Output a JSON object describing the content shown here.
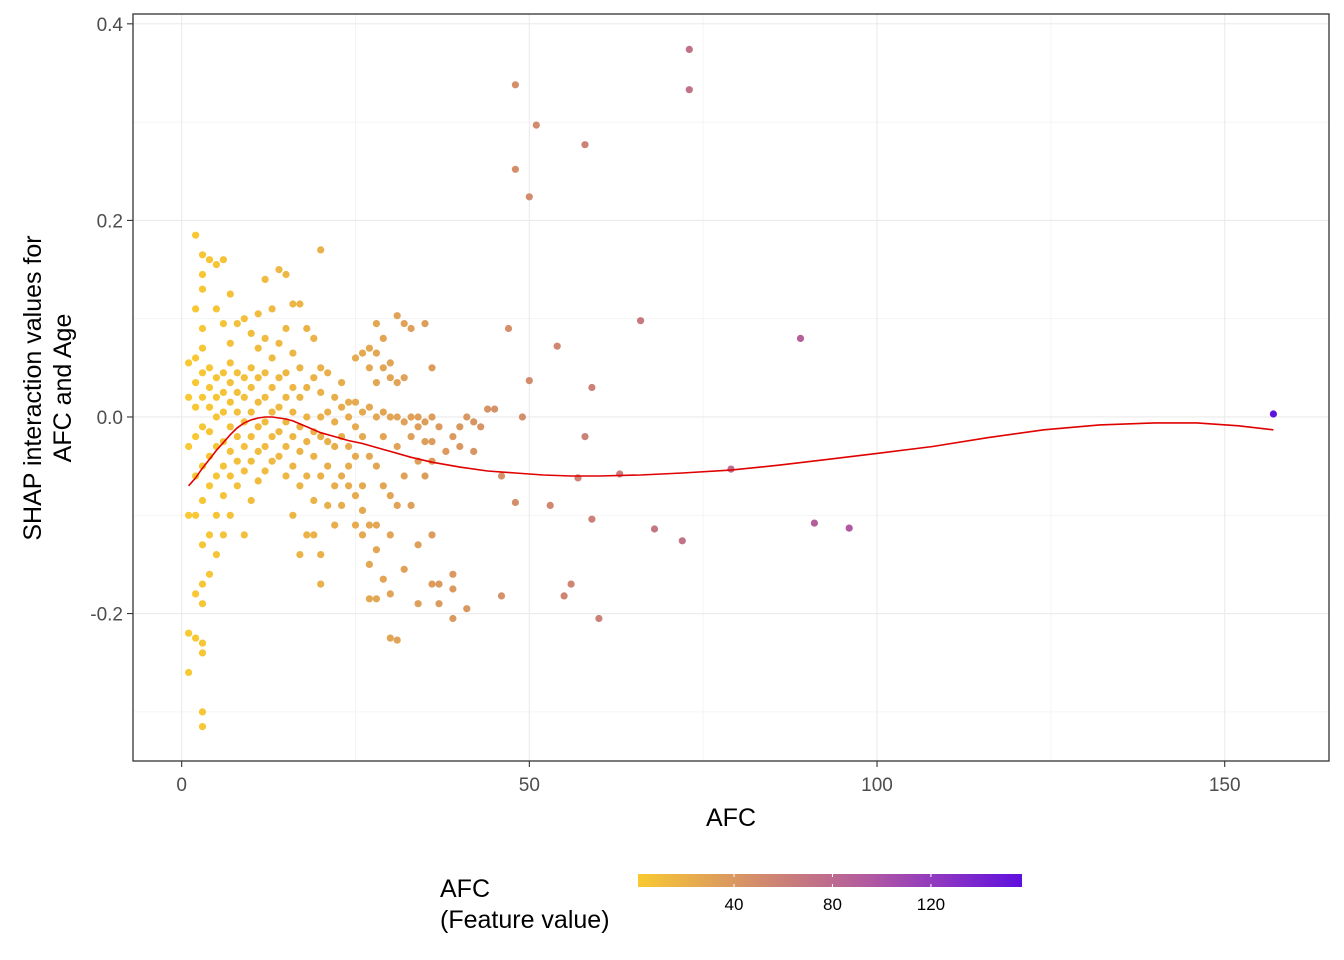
{
  "chart_data": {
    "type": "scatter",
    "xlabel": "AFC",
    "ylabel_lines": [
      "SHAP interaction values for",
      "AFC and Age"
    ],
    "xlim": [
      -7,
      165
    ],
    "ylim": [
      -0.35,
      0.41
    ],
    "x_ticks": [
      0,
      50,
      100,
      150
    ],
    "y_ticks": [
      0.4,
      0.2,
      0.0,
      -0.2
    ],
    "y_tick_labels": [
      "0.4",
      "0.2",
      "0.0",
      "-0.2"
    ],
    "grid": true,
    "legend": {
      "title_lines": [
        "AFC",
        "(Feature value)"
      ],
      "position": "bottom",
      "range": [
        1,
        157
      ],
      "ticks": [
        40,
        80,
        120
      ],
      "colors": [
        "#f9c932",
        "#e0a158",
        "#c87c7c",
        "#b25aa0",
        "#8b34c4",
        "#5f10dd"
      ]
    },
    "points": [
      [
        1,
        -0.26
      ],
      [
        1,
        -0.22
      ],
      [
        1,
        -0.1
      ],
      [
        1,
        -0.03
      ],
      [
        1,
        0.02
      ],
      [
        1,
        0.055
      ],
      [
        2,
        -0.225
      ],
      [
        2,
        -0.18
      ],
      [
        2,
        -0.1
      ],
      [
        2,
        -0.06
      ],
      [
        2,
        -0.02
      ],
      [
        2,
        0.01
      ],
      [
        2,
        0.035
      ],
      [
        2,
        0.06
      ],
      [
        2,
        0.11
      ],
      [
        2,
        0.185
      ],
      [
        3,
        -0.315
      ],
      [
        3,
        -0.3
      ],
      [
        3,
        -0.24
      ],
      [
        3,
        -0.23
      ],
      [
        3,
        -0.19
      ],
      [
        3,
        -0.17
      ],
      [
        3,
        -0.13
      ],
      [
        3,
        -0.085
      ],
      [
        3,
        -0.05
      ],
      [
        3,
        -0.01
      ],
      [
        3,
        0.02
      ],
      [
        3,
        0.045
      ],
      [
        3,
        0.07
      ],
      [
        3,
        0.09
      ],
      [
        3,
        0.13
      ],
      [
        3,
        0.145
      ],
      [
        3,
        0.165
      ],
      [
        4,
        -0.16
      ],
      [
        4,
        -0.12
      ],
      [
        4,
        -0.07
      ],
      [
        4,
        -0.04
      ],
      [
        4,
        -0.015
      ],
      [
        4,
        0.01
      ],
      [
        4,
        0.03
      ],
      [
        4,
        0.05
      ],
      [
        4,
        0.16
      ],
      [
        5,
        -0.14
      ],
      [
        5,
        -0.1
      ],
      [
        5,
        -0.06
      ],
      [
        5,
        -0.03
      ],
      [
        5,
        0.0
      ],
      [
        5,
        0.02
      ],
      [
        5,
        0.04
      ],
      [
        5,
        0.11
      ],
      [
        5,
        0.155
      ],
      [
        6,
        -0.12
      ],
      [
        6,
        -0.08
      ],
      [
        6,
        -0.05
      ],
      [
        6,
        -0.025
      ],
      [
        6,
        0.005
      ],
      [
        6,
        0.025
      ],
      [
        6,
        0.045
      ],
      [
        6,
        0.095
      ],
      [
        6,
        0.16
      ],
      [
        7,
        -0.1
      ],
      [
        7,
        -0.06
      ],
      [
        7,
        -0.035
      ],
      [
        7,
        -0.01
      ],
      [
        7,
        0.015
      ],
      [
        7,
        0.035
      ],
      [
        7,
        0.055
      ],
      [
        7,
        0.075
      ],
      [
        7,
        0.125
      ],
      [
        8,
        -0.07
      ],
      [
        8,
        -0.045
      ],
      [
        8,
        -0.02
      ],
      [
        8,
        0.005
      ],
      [
        8,
        0.025
      ],
      [
        8,
        0.045
      ],
      [
        8,
        0.095
      ],
      [
        9,
        -0.12
      ],
      [
        9,
        -0.055
      ],
      [
        9,
        -0.03
      ],
      [
        9,
        -0.005
      ],
      [
        9,
        0.02
      ],
      [
        9,
        0.04
      ],
      [
        9,
        0.1
      ],
      [
        10,
        -0.085
      ],
      [
        10,
        -0.045
      ],
      [
        10,
        -0.02
      ],
      [
        10,
        0.005
      ],
      [
        10,
        0.03
      ],
      [
        10,
        0.05
      ],
      [
        10,
        0.085
      ],
      [
        11,
        -0.065
      ],
      [
        11,
        -0.035
      ],
      [
        11,
        -0.01
      ],
      [
        11,
        0.015
      ],
      [
        11,
        0.04
      ],
      [
        11,
        0.07
      ],
      [
        11,
        0.105
      ],
      [
        12,
        -0.055
      ],
      [
        12,
        -0.03
      ],
      [
        12,
        -0.005
      ],
      [
        12,
        0.02
      ],
      [
        12,
        0.045
      ],
      [
        12,
        0.08
      ],
      [
        12,
        0.14
      ],
      [
        13,
        -0.045
      ],
      [
        13,
        -0.02
      ],
      [
        13,
        0.005
      ],
      [
        13,
        0.03
      ],
      [
        13,
        0.06
      ],
      [
        13,
        0.11
      ],
      [
        14,
        -0.04
      ],
      [
        14,
        -0.015
      ],
      [
        14,
        0.01
      ],
      [
        14,
        0.04
      ],
      [
        14,
        0.075
      ],
      [
        14,
        0.15
      ],
      [
        15,
        -0.06
      ],
      [
        15,
        -0.03
      ],
      [
        15,
        -0.005
      ],
      [
        15,
        0.02
      ],
      [
        15,
        0.045
      ],
      [
        15,
        0.09
      ],
      [
        15,
        0.145
      ],
      [
        16,
        -0.1
      ],
      [
        16,
        -0.05
      ],
      [
        16,
        -0.02
      ],
      [
        16,
        0.005
      ],
      [
        16,
        0.03
      ],
      [
        16,
        0.065
      ],
      [
        16,
        0.115
      ],
      [
        17,
        -0.14
      ],
      [
        17,
        -0.07
      ],
      [
        17,
        -0.035
      ],
      [
        17,
        -0.01
      ],
      [
        17,
        0.02
      ],
      [
        17,
        0.05
      ],
      [
        17,
        0.115
      ],
      [
        18,
        -0.12
      ],
      [
        18,
        -0.06
      ],
      [
        18,
        -0.025
      ],
      [
        18,
        0.0
      ],
      [
        18,
        0.03
      ],
      [
        18,
        0.09
      ],
      [
        19,
        -0.12
      ],
      [
        19,
        -0.085
      ],
      [
        19,
        -0.04
      ],
      [
        19,
        -0.015
      ],
      [
        19,
        0.04
      ],
      [
        19,
        0.08
      ],
      [
        20,
        -0.17
      ],
      [
        20,
        -0.14
      ],
      [
        20,
        -0.06
      ],
      [
        20,
        -0.02
      ],
      [
        20,
        0.0
      ],
      [
        20,
        0.025
      ],
      [
        20,
        0.05
      ],
      [
        20,
        0.17
      ],
      [
        21,
        -0.09
      ],
      [
        21,
        -0.05
      ],
      [
        21,
        -0.025
      ],
      [
        21,
        0.005
      ],
      [
        21,
        0.045
      ],
      [
        22,
        -0.11
      ],
      [
        22,
        -0.07
      ],
      [
        22,
        -0.03
      ],
      [
        22,
        -0.005
      ],
      [
        22,
        0.02
      ],
      [
        23,
        -0.09
      ],
      [
        23,
        -0.06
      ],
      [
        23,
        -0.02
      ],
      [
        23,
        0.01
      ],
      [
        23,
        0.035
      ],
      [
        24,
        -0.07
      ],
      [
        24,
        -0.05
      ],
      [
        24,
        -0.03
      ],
      [
        24,
        0.0
      ],
      [
        24,
        0.015
      ],
      [
        25,
        -0.11
      ],
      [
        25,
        -0.08
      ],
      [
        25,
        -0.04
      ],
      [
        25,
        -0.01
      ],
      [
        25,
        0.015
      ],
      [
        25,
        0.06
      ],
      [
        26,
        -0.12
      ],
      [
        26,
        -0.095
      ],
      [
        26,
        -0.07
      ],
      [
        26,
        -0.02
      ],
      [
        26,
        0.005
      ],
      [
        26,
        0.065
      ],
      [
        27,
        -0.185
      ],
      [
        27,
        -0.15
      ],
      [
        27,
        -0.11
      ],
      [
        27,
        -0.04
      ],
      [
        27,
        0.01
      ],
      [
        27,
        0.05
      ],
      [
        27,
        0.07
      ],
      [
        28,
        -0.185
      ],
      [
        28,
        -0.135
      ],
      [
        28,
        -0.11
      ],
      [
        28,
        -0.05
      ],
      [
        28,
        0.0
      ],
      [
        28,
        0.035
      ],
      [
        28,
        0.065
      ],
      [
        28,
        0.095
      ],
      [
        29,
        -0.165
      ],
      [
        29,
        -0.07
      ],
      [
        29,
        -0.02
      ],
      [
        29,
        0.005
      ],
      [
        29,
        0.05
      ],
      [
        29,
        0.08
      ],
      [
        30,
        -0.225
      ],
      [
        30,
        -0.18
      ],
      [
        30,
        -0.12
      ],
      [
        30,
        -0.08
      ],
      [
        30,
        0.0
      ],
      [
        30,
        0.04
      ],
      [
        30,
        0.055
      ],
      [
        31,
        -0.227
      ],
      [
        31,
        -0.09
      ],
      [
        31,
        -0.03
      ],
      [
        31,
        0.0
      ],
      [
        31,
        0.035
      ],
      [
        31,
        0.103
      ],
      [
        32,
        -0.155
      ],
      [
        32,
        -0.06
      ],
      [
        32,
        -0.005
      ],
      [
        32,
        0.04
      ],
      [
        32,
        0.095
      ],
      [
        33,
        -0.09
      ],
      [
        33,
        -0.02
      ],
      [
        33,
        0.0
      ],
      [
        33,
        0.09
      ],
      [
        34,
        -0.19
      ],
      [
        34,
        -0.13
      ],
      [
        34,
        -0.045
      ],
      [
        34,
        -0.01
      ],
      [
        34,
        0.0
      ],
      [
        35,
        -0.06
      ],
      [
        35,
        -0.025
      ],
      [
        35,
        -0.005
      ],
      [
        35,
        0.095
      ],
      [
        36,
        -0.17
      ],
      [
        36,
        -0.12
      ],
      [
        36,
        -0.045
      ],
      [
        36,
        -0.025
      ],
      [
        36,
        0.0
      ],
      [
        36,
        0.05
      ],
      [
        37,
        -0.19
      ],
      [
        37,
        -0.17
      ],
      [
        37,
        -0.01
      ],
      [
        38,
        -0.035
      ],
      [
        39,
        -0.205
      ],
      [
        39,
        -0.175
      ],
      [
        39,
        -0.16
      ],
      [
        39,
        -0.02
      ],
      [
        40,
        -0.03
      ],
      [
        40,
        -0.01
      ],
      [
        41,
        -0.195
      ],
      [
        41,
        0.0
      ],
      [
        42,
        -0.035
      ],
      [
        42,
        -0.005
      ],
      [
        43,
        -0.01
      ],
      [
        44,
        0.008
      ],
      [
        45,
        0.008
      ],
      [
        46,
        -0.182
      ],
      [
        46,
        -0.06
      ],
      [
        47,
        0.09
      ],
      [
        48,
        0.338
      ],
      [
        48,
        0.252
      ],
      [
        48,
        -0.087
      ],
      [
        49,
        0.0
      ],
      [
        50,
        0.224
      ],
      [
        50,
        0.037
      ],
      [
        51,
        0.297
      ],
      [
        53,
        -0.09
      ],
      [
        54,
        0.072
      ],
      [
        55,
        -0.182
      ],
      [
        56,
        -0.17
      ],
      [
        57,
        -0.062
      ],
      [
        58,
        0.277
      ],
      [
        58,
        -0.02
      ],
      [
        59,
        0.03
      ],
      [
        59,
        -0.104
      ],
      [
        60,
        -0.205
      ],
      [
        63,
        -0.058
      ],
      [
        66,
        0.098
      ],
      [
        68,
        -0.114
      ],
      [
        72,
        -0.126
      ],
      [
        73,
        0.374
      ],
      [
        73,
        0.333
      ],
      [
        79,
        -0.053
      ],
      [
        89,
        0.08
      ],
      [
        91,
        -0.108
      ],
      [
        96,
        -0.113
      ],
      [
        157,
        0.003
      ]
    ],
    "smooth_line": {
      "color": "#e00000",
      "x": [
        1,
        2,
        3,
        4,
        5,
        6,
        7,
        8,
        9,
        10,
        11,
        12,
        13,
        14,
        15,
        16,
        17,
        18,
        19,
        20,
        22,
        24,
        26,
        28,
        30,
        33,
        36,
        40,
        44,
        48,
        52,
        56,
        60,
        66,
        72,
        79,
        86,
        93,
        100,
        108,
        116,
        124,
        132,
        140,
        146,
        152,
        157
      ],
      "y": [
        -0.07,
        -0.062,
        -0.052,
        -0.043,
        -0.034,
        -0.026,
        -0.018,
        -0.011,
        -0.006,
        -0.003,
        -0.001,
        0.0,
        0.0,
        -0.001,
        -0.002,
        -0.004,
        -0.007,
        -0.01,
        -0.013,
        -0.016,
        -0.02,
        -0.024,
        -0.027,
        -0.031,
        -0.035,
        -0.041,
        -0.046,
        -0.051,
        -0.055,
        -0.057,
        -0.059,
        -0.06,
        -0.06,
        -0.059,
        -0.057,
        -0.054,
        -0.049,
        -0.043,
        -0.037,
        -0.03,
        -0.021,
        -0.013,
        -0.008,
        -0.006,
        -0.006,
        -0.009,
        -0.013
      ]
    }
  }
}
